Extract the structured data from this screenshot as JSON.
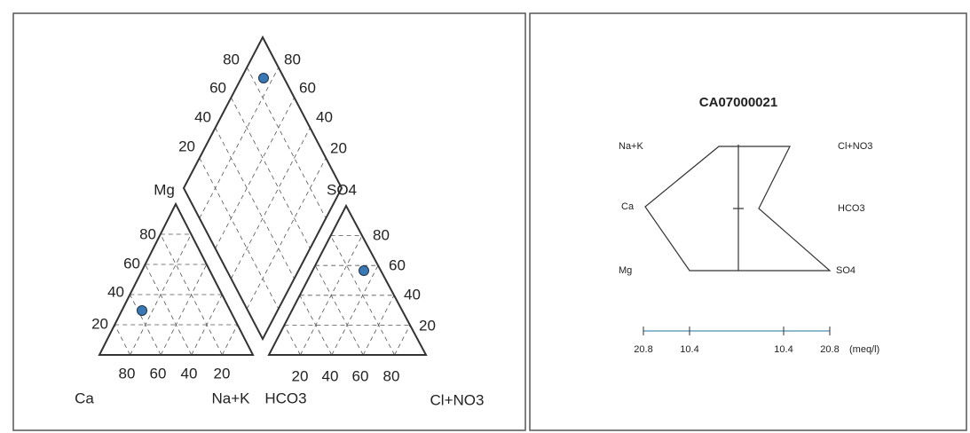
{
  "piper": {
    "labels": [
      "Mg",
      "SO4",
      "Ca",
      "Na+K",
      "HCO3",
      "Cl+NO3"
    ],
    "ticks": [
      "80",
      "60",
      "40",
      "20"
    ]
  },
  "stiff": {
    "title": "CA07000021",
    "left_labels": [
      "Na+K",
      "Ca",
      "Mg"
    ],
    "right_labels": [
      "Cl+NO3",
      "HCO3",
      "SO4"
    ],
    "axis_ticks": [
      "20.8",
      "10.4",
      "10.4",
      "20.8"
    ],
    "unit": "(meq/l)"
  }
}
